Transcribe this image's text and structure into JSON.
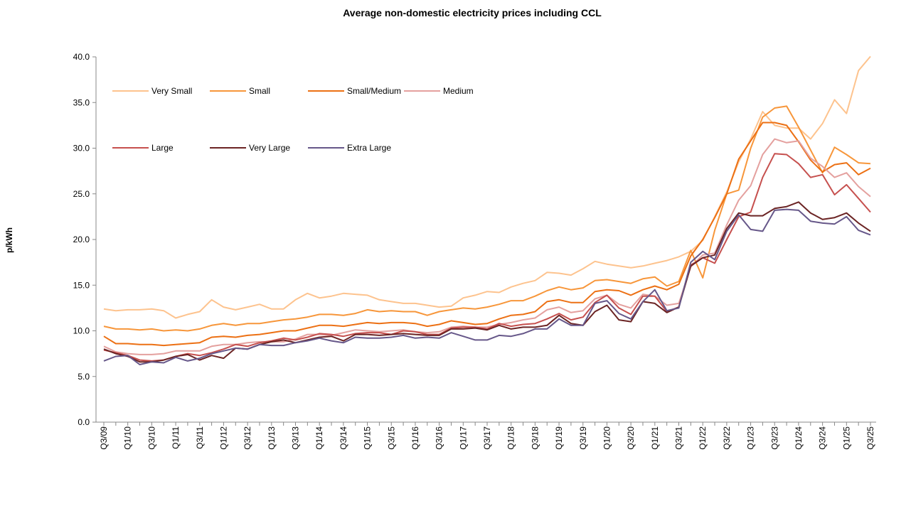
{
  "chart_data": {
    "type": "line",
    "title": "Average non-domestic electricity prices including CCL",
    "xlabel": "",
    "ylabel": "p/kWh",
    "ylim": [
      0,
      40
    ],
    "y_ticks": [
      "0.0",
      "5.0",
      "10.0",
      "15.0",
      "20.0",
      "25.0",
      "30.0",
      "35.0",
      "40.0"
    ],
    "x_tick_labels": [
      "Q3/09",
      "Q1/10",
      "Q3/10",
      "Q1/11",
      "Q3/11",
      "Q1/12",
      "Q3/12",
      "Q1/13",
      "Q3/13",
      "Q1/14",
      "Q3/14",
      "Q1/15",
      "Q3/15",
      "Q1/16",
      "Q3/16",
      "Q1/17",
      "Q3/17",
      "Q1/18",
      "Q3/18",
      "Q1/19",
      "Q3/19",
      "Q1/20",
      "Q3/20",
      "Q1/21",
      "Q3/21",
      "Q1/22",
      "Q3/22",
      "Q1/23",
      "Q3/23",
      "Q1/24",
      "Q3/24",
      "Q1/25",
      "Q3/25"
    ],
    "grid": false,
    "legend_placement": "top-left",
    "series": [
      {
        "name": "Very Small",
        "color": "#FDC38E",
        "values": [
          12.4,
          12.2,
          12.3,
          12.3,
          12.4,
          12.2,
          11.4,
          11.8,
          12.1,
          13.4,
          12.6,
          12.3,
          12.6,
          12.9,
          12.4,
          12.4,
          13.4,
          14.1,
          13.6,
          13.8,
          14.1,
          14.0,
          13.9,
          13.4,
          13.2,
          13.0,
          13.0,
          12.8,
          12.6,
          12.7,
          13.6,
          13.9,
          14.3,
          14.2,
          14.8,
          15.2,
          15.5,
          16.4,
          16.3,
          16.1,
          16.8,
          17.6,
          17.3,
          17.1,
          16.9,
          17.1,
          17.4,
          17.7,
          18.1,
          18.7,
          19.9,
          22.5,
          25.2,
          28.5,
          31.0,
          34.0,
          32.5,
          32.2,
          32.2,
          31.0,
          32.7,
          35.3,
          33.8,
          38.5,
          40.2
        ]
      },
      {
        "name": "Small",
        "color": "#F7963A",
        "values": [
          10.5,
          10.2,
          10.2,
          10.1,
          10.2,
          10.0,
          10.1,
          10.0,
          10.2,
          10.6,
          10.8,
          10.6,
          10.8,
          10.8,
          11.0,
          11.2,
          11.3,
          11.5,
          11.8,
          11.8,
          11.7,
          11.9,
          12.3,
          12.1,
          12.2,
          12.1,
          12.1,
          11.7,
          12.1,
          12.3,
          12.5,
          12.4,
          12.6,
          12.9,
          13.3,
          13.3,
          13.8,
          14.4,
          14.8,
          14.5,
          14.7,
          15.5,
          15.6,
          15.4,
          15.2,
          15.7,
          15.9,
          14.9,
          15.4,
          18.8,
          15.8,
          21.0,
          25.0,
          25.4,
          30.0,
          33.4,
          34.4,
          34.6,
          32.3,
          29.8,
          27.3,
          30.1,
          29.3,
          28.4,
          28.3
        ]
      },
      {
        "name": "Small/Medium",
        "color": "#EC7014",
        "values": [
          9.4,
          8.6,
          8.6,
          8.5,
          8.5,
          8.4,
          8.5,
          8.6,
          8.7,
          9.3,
          9.4,
          9.3,
          9.5,
          9.6,
          9.8,
          10.0,
          10.0,
          10.3,
          10.6,
          10.6,
          10.5,
          10.7,
          10.9,
          10.8,
          10.9,
          10.9,
          10.8,
          10.5,
          10.7,
          11.1,
          10.9,
          10.7,
          10.8,
          11.3,
          11.7,
          11.8,
          12.1,
          13.2,
          13.4,
          13.1,
          13.1,
          14.3,
          14.5,
          14.4,
          13.9,
          14.5,
          14.9,
          14.5,
          15.1,
          18.2,
          20.0,
          22.4,
          25.0,
          28.8,
          30.8,
          32.8,
          32.8,
          32.5,
          30.7,
          28.7,
          27.4,
          28.2,
          28.4,
          27.1,
          27.8
        ]
      },
      {
        "name": "Medium",
        "color": "#E4A09E",
        "values": [
          8.3,
          7.7,
          7.5,
          7.4,
          7.4,
          7.5,
          7.8,
          7.8,
          7.8,
          8.3,
          8.5,
          8.5,
          8.7,
          8.8,
          8.8,
          8.8,
          9.1,
          9.6,
          9.6,
          9.5,
          9.8,
          10.1,
          10.0,
          9.9,
          10.0,
          10.1,
          9.9,
          9.8,
          9.9,
          10.4,
          10.5,
          10.4,
          10.4,
          10.7,
          10.9,
          11.2,
          11.4,
          12.3,
          12.6,
          12.0,
          12.2,
          13.5,
          13.9,
          12.9,
          12.5,
          14.0,
          13.8,
          12.8,
          13.0,
          17.0,
          18.3,
          18.5,
          21.6,
          24.3,
          25.9,
          29.3,
          31.0,
          30.6,
          30.8,
          28.9,
          28.0,
          26.8,
          27.3,
          25.8,
          24.7
        ]
      },
      {
        "name": "Large",
        "color": "#C6504E",
        "values": [
          7.9,
          7.6,
          7.3,
          6.8,
          6.7,
          6.8,
          7.2,
          7.5,
          7.3,
          7.6,
          8.0,
          8.5,
          8.3,
          8.7,
          8.9,
          9.2,
          9.0,
          9.3,
          9.7,
          9.6,
          9.4,
          9.7,
          9.8,
          9.8,
          9.6,
          10.0,
          9.9,
          9.6,
          9.6,
          10.3,
          10.4,
          10.4,
          10.2,
          10.8,
          10.5,
          10.7,
          10.8,
          11.3,
          11.9,
          11.2,
          11.5,
          13.1,
          13.9,
          12.5,
          11.8,
          13.8,
          13.8,
          12.1,
          12.6,
          17.2,
          18.0,
          17.4,
          20.0,
          22.5,
          23.0,
          26.8,
          29.4,
          29.3,
          28.3,
          26.8,
          27.1,
          24.9,
          26.0,
          24.5,
          23.0
        ]
      },
      {
        "name": "Very Large",
        "color": "#6B2424",
        "values": [
          8.0,
          7.5,
          7.2,
          6.6,
          6.6,
          6.8,
          7.2,
          7.4,
          6.8,
          7.3,
          7.0,
          8.1,
          8.0,
          8.5,
          8.8,
          9.0,
          8.7,
          9.0,
          9.3,
          9.4,
          8.9,
          9.6,
          9.6,
          9.5,
          9.6,
          9.7,
          9.6,
          9.5,
          9.5,
          10.2,
          10.2,
          10.3,
          10.1,
          10.6,
          10.2,
          10.4,
          10.4,
          10.6,
          11.7,
          10.8,
          10.6,
          12.1,
          12.8,
          11.2,
          11.0,
          13.2,
          13.0,
          12.0,
          12.6,
          17.1,
          18.0,
          18.3,
          21.2,
          22.9,
          22.6,
          22.6,
          23.4,
          23.6,
          24.1,
          22.9,
          22.2,
          22.4,
          22.9,
          21.8,
          20.9
        ]
      },
      {
        "name": "Extra Large",
        "color": "#665789",
        "values": [
          6.7,
          7.2,
          7.3,
          6.3,
          6.6,
          6.5,
          7.1,
          6.7,
          7.0,
          7.5,
          7.8,
          8.1,
          8.0,
          8.5,
          8.4,
          8.4,
          8.7,
          8.9,
          9.2,
          8.9,
          8.7,
          9.3,
          9.2,
          9.2,
          9.3,
          9.5,
          9.2,
          9.3,
          9.2,
          9.8,
          9.4,
          9.0,
          9.0,
          9.5,
          9.4,
          9.7,
          10.2,
          10.2,
          11.3,
          10.6,
          10.6,
          13.0,
          13.3,
          11.9,
          11.3,
          13.2,
          14.5,
          12.2,
          12.5,
          17.5,
          18.7,
          17.8,
          20.9,
          22.7,
          21.1,
          20.9,
          23.2,
          23.3,
          23.2,
          22.0,
          21.8,
          21.7,
          22.5,
          21.0,
          20.5
        ]
      }
    ]
  }
}
